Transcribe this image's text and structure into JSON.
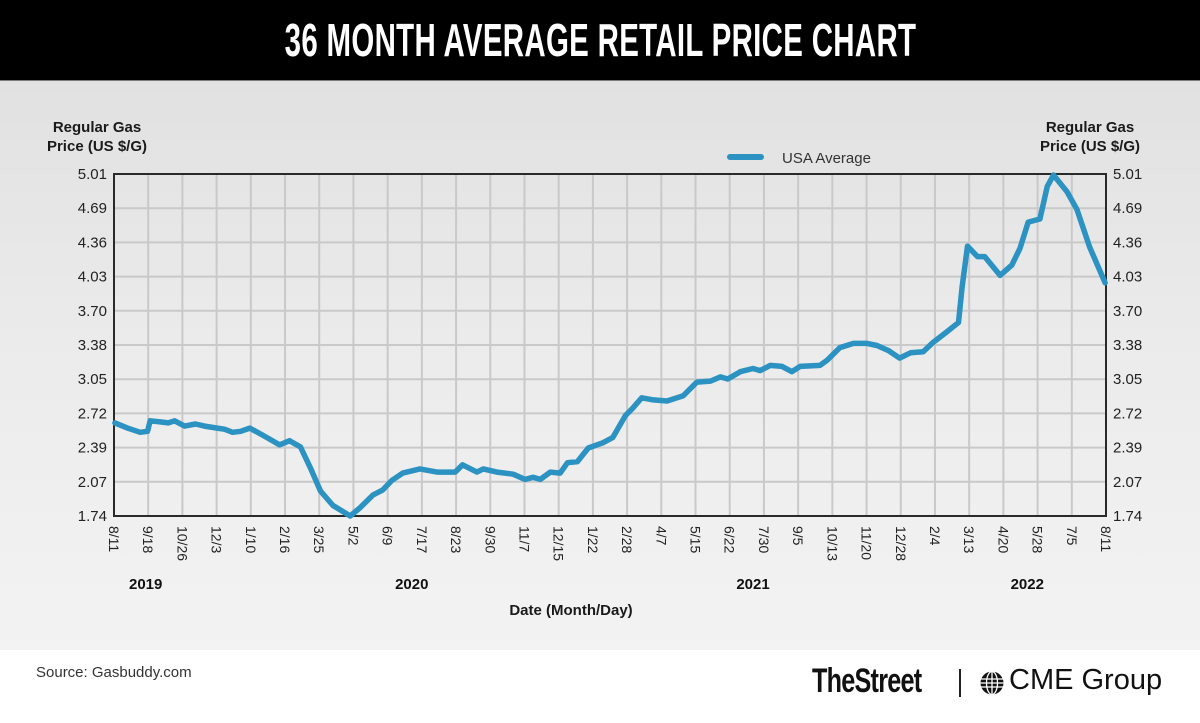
{
  "header": {
    "title": "36 MONTH AVERAGE RETAIL PRICE CHART"
  },
  "footer": {
    "source": "Source: Gasbuddy.com",
    "logo_thestreet": "TheStreet",
    "logo_cme": "CME Group",
    "logo_cme_icon": "globe-icon"
  },
  "colors": {
    "series": "#2b92c2",
    "header_bg": "#000000",
    "grid": "#c9c9c9",
    "axis": "#2a2a2a"
  },
  "chart_data": {
    "type": "line",
    "title": "36 MONTH AVERAGE RETAIL PRICE CHART",
    "ylabel_left": [
      "Regular Gas",
      "Price (US $/G)"
    ],
    "ylabel_right": [
      "Regular Gas",
      "Price (US $/G)"
    ],
    "xlabel": "Date (Month/Day)",
    "ylim": [
      1.74,
      5.01
    ],
    "y_ticks": [
      "5.01",
      "4.69",
      "4.36",
      "4.03",
      "3.70",
      "3.38",
      "3.05",
      "2.72",
      "2.39",
      "2.07",
      "1.74"
    ],
    "x_start_date": "2019-08-11",
    "x_unit": "days since start",
    "xlim": [
      0,
      1096
    ],
    "x_ticks": [
      "8/11",
      "9/18",
      "10/26",
      "12/3",
      "1/10",
      "2/16",
      "3/25",
      "5/2",
      "6/9",
      "7/17",
      "8/23",
      "9/30",
      "11/7",
      "12/15",
      "1/22",
      "2/28",
      "4/7",
      "5/15",
      "6/22",
      "7/30",
      "9/5",
      "10/13",
      "11/20",
      "12/28",
      "2/4",
      "3/13",
      "4/20",
      "5/28",
      "7/5",
      "8/11"
    ],
    "year_labels": [
      {
        "label": "2019",
        "at_day": 35
      },
      {
        "label": "2020",
        "at_day": 329
      },
      {
        "label": "2021",
        "at_day": 706
      },
      {
        "label": "2022",
        "at_day": 1009
      }
    ],
    "grid": true,
    "legend": {
      "position": "top-right",
      "entries": [
        "USA Average"
      ]
    },
    "series": [
      {
        "name": "USA Average",
        "x": [
          1,
          15,
          29,
          37,
          40,
          51,
          60,
          67,
          78,
          90,
          100,
          114,
          122,
          131,
          140,
          150,
          165,
          183,
          194,
          206,
          217,
          228,
          242,
          261,
          272,
          286,
          297,
          307,
          319,
          338,
          357,
          377,
          385,
          401,
          408,
          423,
          441,
          454,
          463,
          471,
          482,
          493,
          501,
          512,
          524,
          540,
          551,
          565,
          573,
          583,
          596,
          611,
          629,
          644,
          659,
          670,
          678,
          692,
          706,
          714,
          725,
          738,
          749,
          758,
          780,
          788,
          802,
          817,
          832,
          843,
          856,
          868,
          880,
          894,
          905,
          920,
          933,
          937,
          943,
          954,
          962,
          979,
          992,
          1001,
          1010,
          1023,
          1031,
          1038,
          1053,
          1064,
          1078,
          1095
        ],
        "values": [
          2.63,
          2.58,
          2.54,
          2.55,
          2.65,
          2.64,
          2.63,
          2.65,
          2.6,
          2.62,
          2.6,
          2.58,
          2.57,
          2.54,
          2.55,
          2.58,
          2.51,
          2.42,
          2.46,
          2.4,
          2.2,
          1.98,
          1.84,
          1.74,
          1.82,
          1.94,
          1.99,
          2.08,
          2.15,
          2.19,
          2.16,
          2.16,
          2.23,
          2.16,
          2.19,
          2.16,
          2.14,
          2.09,
          2.11,
          2.09,
          2.16,
          2.15,
          2.25,
          2.26,
          2.39,
          2.44,
          2.49,
          2.7,
          2.77,
          2.87,
          2.85,
          2.84,
          2.89,
          3.02,
          3.03,
          3.07,
          3.05,
          3.12,
          3.15,
          3.13,
          3.18,
          3.17,
          3.12,
          3.17,
          3.18,
          3.23,
          3.35,
          3.39,
          3.39,
          3.37,
          3.32,
          3.25,
          3.3,
          3.31,
          3.4,
          3.5,
          3.59,
          3.93,
          4.32,
          4.22,
          4.22,
          4.04,
          4.14,
          4.3,
          4.55,
          4.58,
          4.89,
          5.0,
          4.84,
          4.67,
          4.31,
          3.97
        ]
      }
    ]
  }
}
